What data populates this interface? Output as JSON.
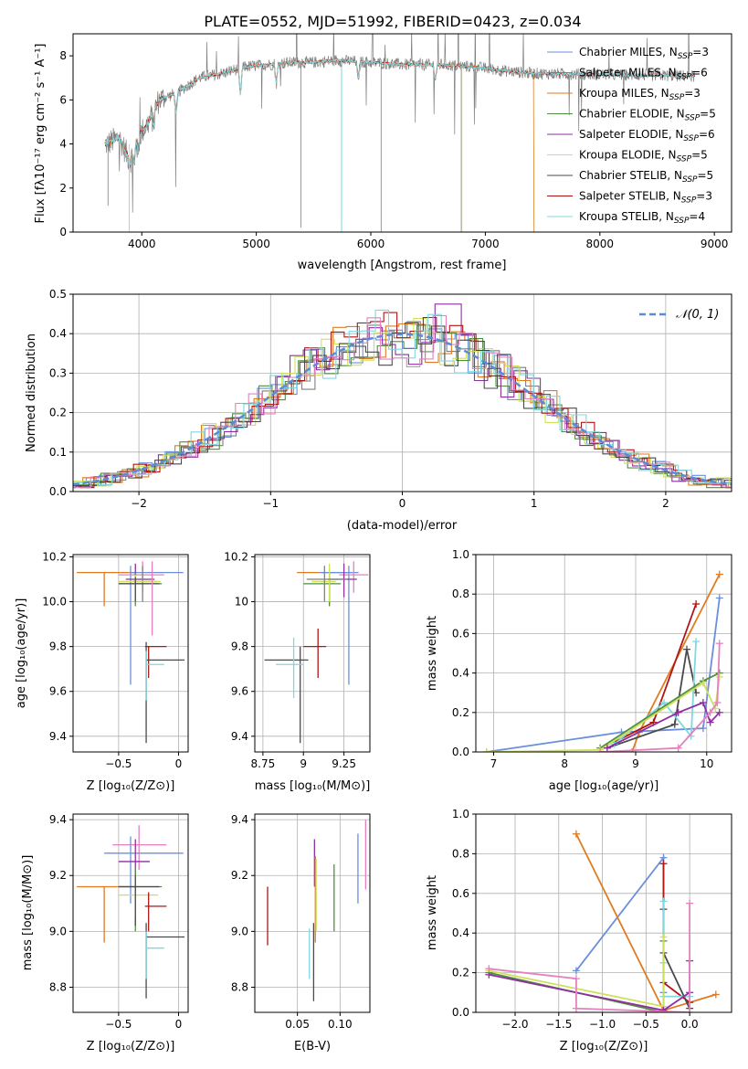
{
  "figure_title": "PLATE=0552, MJD=51992, FIBERID=0423, z=0.034",
  "colors": {
    "Chabrier MILES": "#6a8fdc",
    "Salpeter MILES": "#7f7f7f",
    "Kroupa MILES": "#e07b22",
    "Chabrier ELODIE": "#4f8f3f",
    "Salpeter ELODIE": "#8e2fa0",
    "Kroupa ELODIE": "#cfe05a",
    "Chabrier STELIB": "#4a4a4a",
    "Salpeter STELIB": "#b01515",
    "Kroupa STELIB": "#7fd8e0",
    "Extra": "#e680c0"
  },
  "chart_data": [
    {
      "id": "spectrum",
      "type": "line",
      "xlabel": "wavelength [Angstrom, rest frame]",
      "ylabel": "Flux [fλ10⁻¹⁷ erg cm⁻² s⁻¹ A⁻¹]",
      "xlim": [
        3400,
        9150
      ],
      "ylim": [
        0,
        9
      ],
      "xticks": [
        4000,
        5000,
        6000,
        7000,
        8000,
        9000
      ],
      "yticks": [
        0,
        2,
        4,
        6,
        8
      ],
      "grid": false,
      "legend_loc": "upper-right",
      "legend": [
        {
          "label": "Chabrier MILES, N",
          "sub": "SSP",
          "n": "=3",
          "color_key": "Chabrier MILES"
        },
        {
          "label": "Salpeter MILES, N",
          "sub": "SSP",
          "n": "=6",
          "color_key": "Salpeter MILES"
        },
        {
          "label": "Kroupa MILES, N",
          "sub": "SSP",
          "n": "=3",
          "color_key": "Kroupa MILES"
        },
        {
          "label": "Chabrier ELODIE, N",
          "sub": "SSP",
          "n": "=5",
          "color_key": "Chabrier ELODIE"
        },
        {
          "label": "Salpeter ELODIE, N",
          "sub": "SSP",
          "n": "=6",
          "color_key": "Salpeter ELODIE"
        },
        {
          "label": "Kroupa ELODIE, N",
          "sub": "SSP",
          "n": "=5",
          "color_key": "Kroupa ELODIE"
        },
        {
          "label": "Chabrier STELIB, N",
          "sub": "SSP",
          "n": "=5",
          "color_key": "Chabrier STELIB"
        },
        {
          "label": "Salpeter STELIB, N",
          "sub": "SSP",
          "n": "=3",
          "color_key": "Salpeter STELIB"
        },
        {
          "label": "Kroupa STELIB, N",
          "sub": "SSP",
          "n": "=4",
          "color_key": "Kroupa STELIB"
        }
      ],
      "continuum": [
        [
          3700,
          4.0
        ],
        [
          3800,
          4.3
        ],
        [
          3900,
          3.2
        ],
        [
          3950,
          4.2
        ],
        [
          4050,
          4.9
        ],
        [
          4150,
          6.0
        ],
        [
          4300,
          6.3
        ],
        [
          4500,
          7.0
        ],
        [
          4700,
          7.2
        ],
        [
          4900,
          7.5
        ],
        [
          5100,
          7.6
        ],
        [
          5300,
          7.7
        ],
        [
          5500,
          7.7
        ],
        [
          5700,
          7.8
        ],
        [
          6000,
          7.7
        ],
        [
          6300,
          7.6
        ],
        [
          6600,
          7.6
        ],
        [
          6900,
          7.5
        ],
        [
          7200,
          7.3
        ],
        [
          7420,
          7.2
        ]
      ],
      "features": [
        [
          3933,
          3.0
        ],
        [
          3968,
          3.5
        ],
        [
          4102,
          4.8
        ],
        [
          4300,
          5.4
        ],
        [
          4861,
          6.2
        ],
        [
          5175,
          6.7
        ],
        [
          5890,
          6.9
        ],
        [
          6563,
          6.9
        ]
      ],
      "series": [
        {
          "name": "Salpeter MILES",
          "x_end": 8830,
          "noise": 0.55
        },
        {
          "name": "Kroupa MILES",
          "x_end": 7420
        },
        {
          "name": "Salpeter STELIB",
          "x_end": 8830
        },
        {
          "name": "Kroupa STELIB",
          "x_end": 8830
        }
      ]
    },
    {
      "id": "residuals",
      "type": "histogram",
      "xlabel": "(data-model)/error",
      "ylabel": "Normed distribution",
      "xlim": [
        -2.5,
        2.5
      ],
      "ylim": [
        0,
        0.5
      ],
      "xticks": [
        -2,
        -1,
        0,
        1,
        2
      ],
      "yticks": [
        0.0,
        0.1,
        0.2,
        0.3,
        0.4,
        0.5
      ],
      "grid": true,
      "bin_width": 0.1,
      "legend": {
        "label": "𝒩(0, 1)",
        "loc": "upper-right"
      },
      "gaussian": {
        "mu": 0,
        "sigma": 1
      },
      "series_colors": [
        "Chabrier MILES",
        "Salpeter MILES",
        "Kroupa MILES",
        "Chabrier ELODIE",
        "Salpeter ELODIE",
        "Kroupa ELODIE",
        "Chabrier STELIB",
        "Salpeter STELIB",
        "Kroupa STELIB",
        "Extra"
      ]
    },
    {
      "id": "age-vs-z",
      "type": "errorbar",
      "xlabel": "Z [log₁₀(Z/Z⊙)]",
      "ylabel": "age  [log₁₀(age/yr)]",
      "xlim": [
        -0.88,
        0.08
      ],
      "ylim": [
        9.33,
        10.21
      ],
      "xticks": [
        -0.5,
        0.0
      ],
      "ytick_labels": [
        "9.4",
        "9.6",
        "9.8",
        "10.0",
        "10.2"
      ],
      "yticks": [
        9.4,
        9.6,
        9.8,
        10.0,
        10.2
      ],
      "grid": true,
      "points": [
        {
          "c": "Kroupa MILES",
          "x": -0.62,
          "y": 10.13,
          "xl": -0.85,
          "xh": -0.36,
          "yl": 9.98,
          "yh": 10.13
        },
        {
          "c": "Chabrier MILES",
          "x": -0.4,
          "y": 10.13,
          "xl": -0.4,
          "xh": 0.04,
          "yl": 9.63,
          "yh": 10.16
        },
        {
          "c": "Extra",
          "x": -0.3,
          "y": 10.12,
          "xl": -0.5,
          "xh": -0.12,
          "yl": 10.04,
          "yh": 10.18
        },
        {
          "c": "Salpeter ELODIE",
          "x": -0.36,
          "y": 10.1,
          "xl": -0.44,
          "xh": -0.2,
          "yl": 10.02,
          "yh": 10.17
        },
        {
          "c": "Salpeter MILES",
          "x": -0.3,
          "y": 10.09,
          "xl": -0.38,
          "xh": -0.18,
          "yl": 10.0,
          "yh": 10.16
        },
        {
          "c": "Chabrier ELODIE",
          "x": -0.36,
          "y": 10.08,
          "xl": -0.5,
          "xh": -0.14,
          "yl": 9.98,
          "yh": 10.13
        },
        {
          "c": "Kroupa ELODIE",
          "x": -0.36,
          "y": 10.09,
          "xl": -0.5,
          "xh": -0.15,
          "yl": 10.0,
          "yh": 10.12
        },
        {
          "c": "Chabrier STELIB",
          "x": -0.36,
          "y": 10.08,
          "xl": -0.5,
          "xh": -0.16,
          "yl": 10.0,
          "yh": 10.11
        },
        {
          "c": "Extra",
          "x": -0.22,
          "y": 10.05,
          "xl": -0.22,
          "xh": -0.22,
          "yl": 9.85,
          "yh": 10.18
        },
        {
          "c": "Salpeter STELIB",
          "x": -0.25,
          "y": 9.8,
          "xl": -0.28,
          "xh": -0.1,
          "yl": 9.66,
          "yh": 9.8
        },
        {
          "c": "Chabrier STELIB",
          "x": -0.27,
          "y": 9.74,
          "xl": -0.27,
          "xh": 0.05,
          "yl": 9.37,
          "yh": 9.82
        },
        {
          "c": "Kroupa STELIB",
          "x": -0.27,
          "y": 9.72,
          "xl": -0.27,
          "xh": -0.12,
          "yl": 9.56,
          "yh": 9.78
        }
      ]
    },
    {
      "id": "age-vs-mass",
      "type": "errorbar",
      "xlabel": "mass [log₁₀(M/M⊙)]",
      "ylabel": "",
      "xlim": [
        8.7,
        9.41
      ],
      "ylim": [
        9.33,
        10.21
      ],
      "xticks": [
        8.75,
        9.0,
        9.25
      ],
      "yticks": [
        9.4,
        9.6,
        9.8,
        10.0,
        10.2
      ],
      "grid": true,
      "points": [
        {
          "c": "Kroupa MILES",
          "x": 9.16,
          "y": 10.13,
          "xl": 8.96,
          "xh": 9.28,
          "yl": 9.98,
          "yh": 10.13
        },
        {
          "c": "Chabrier MILES",
          "x": 9.28,
          "y": 10.13,
          "xl": 9.1,
          "xh": 9.34,
          "yl": 9.63,
          "yh": 10.16
        },
        {
          "c": "Extra",
          "x": 9.31,
          "y": 10.12,
          "xl": 9.22,
          "xh": 9.4,
          "yl": 10.04,
          "yh": 10.18
        },
        {
          "c": "Salpeter ELODIE",
          "x": 9.25,
          "y": 10.1,
          "xl": 9.15,
          "xh": 9.33,
          "yl": 10.02,
          "yh": 10.17
        },
        {
          "c": "Chabrier ELODIE",
          "x": 9.16,
          "y": 10.08,
          "xl": 9.0,
          "xh": 9.23,
          "yl": 9.98,
          "yh": 10.13
        },
        {
          "c": "Kroupa ELODIE",
          "x": 9.16,
          "y": 10.09,
          "xl": 9.05,
          "xh": 9.2,
          "yl": 10.0,
          "yh": 10.17
        },
        {
          "c": "Salpeter MILES",
          "x": 9.13,
          "y": 10.1,
          "xl": 9.02,
          "xh": 9.27,
          "yl": 10.0,
          "yh": 10.16
        },
        {
          "c": "Salpeter STELIB",
          "x": 9.09,
          "y": 9.8,
          "xl": 9.0,
          "xh": 9.14,
          "yl": 9.66,
          "yh": 9.88
        },
        {
          "c": "Chabrier STELIB",
          "x": 8.98,
          "y": 9.74,
          "xl": 8.76,
          "xh": 9.03,
          "yl": 9.37,
          "yh": 9.8
        },
        {
          "c": "Kroupa STELIB",
          "x": 8.94,
          "y": 9.72,
          "xl": 8.83,
          "xh": 9.0,
          "yl": 9.57,
          "yh": 9.84
        }
      ]
    },
    {
      "id": "mass-weight-vs-age",
      "type": "line",
      "xlabel": "age  [log₁₀(age/yr)]",
      "ylabel": "mass weight",
      "xlim": [
        6.75,
        10.35
      ],
      "ylim": [
        0,
        1.0
      ],
      "xticks": [
        7,
        8,
        9,
        10
      ],
      "yticks": [
        0.0,
        0.2,
        0.4,
        0.6,
        0.8,
        1.0
      ],
      "grid": true,
      "series": [
        {
          "c": "Chabrier MILES",
          "x": [
            6.9,
            8.8,
            9.95,
            10.18
          ],
          "y": [
            0.0,
            0.1,
            0.12,
            0.78
          ]
        },
        {
          "c": "Kroupa MILES",
          "x": [
            8.95,
            9.05,
            10.18
          ],
          "y": [
            0.0,
            0.1,
            0.9
          ]
        },
        {
          "c": "Salpeter STELIB",
          "x": [
            8.7,
            9.25,
            9.85
          ],
          "y": [
            0.05,
            0.15,
            0.75
          ]
        },
        {
          "c": "Chabrier STELIB",
          "x": [
            8.6,
            9.55,
            9.72,
            9.85
          ],
          "y": [
            0.02,
            0.14,
            0.52,
            0.3
          ]
        },
        {
          "c": "Kroupa STELIB",
          "x": [
            8.7,
            9.4,
            9.78,
            9.85
          ],
          "y": [
            0.04,
            0.25,
            0.08,
            0.56
          ]
        },
        {
          "c": "Chabrier ELODIE",
          "x": [
            8.5,
            9.95,
            10.18
          ],
          "y": [
            0.02,
            0.36,
            0.4
          ]
        },
        {
          "c": "Kroupa ELODIE",
          "x": [
            6.9,
            8.5,
            9.95,
            10.12,
            10.18
          ],
          "y": [
            0.0,
            0.01,
            0.35,
            0.22,
            0.38
          ]
        },
        {
          "c": "Salpeter ELODIE",
          "x": [
            8.6,
            9.6,
            9.95,
            10.05,
            10.18
          ],
          "y": [
            0.02,
            0.2,
            0.25,
            0.15,
            0.2
          ]
        },
        {
          "c": "Extra",
          "x": [
            8.5,
            9.6,
            10.05,
            10.15,
            10.18
          ],
          "y": [
            0.0,
            0.02,
            0.2,
            0.25,
            0.55
          ]
        }
      ]
    },
    {
      "id": "mass-vs-z",
      "type": "errorbar",
      "xlabel": "Z [log₁₀(Z/Z⊙)]",
      "ylabel": "mass [log₁₀(M/M⊙)]",
      "xlim": [
        -0.88,
        0.08
      ],
      "ylim": [
        8.71,
        9.42
      ],
      "xticks": [
        -0.5,
        0.0
      ],
      "yticks": [
        8.8,
        9.0,
        9.2,
        9.4
      ],
      "grid": true,
      "points": [
        {
          "c": "Extra",
          "x": -0.33,
          "y": 9.31,
          "xl": -0.55,
          "xh": -0.1,
          "yl": 9.22,
          "yh": 9.38
        },
        {
          "c": "Chabrier MILES",
          "x": -0.4,
          "y": 9.28,
          "xl": -0.62,
          "xh": 0.04,
          "yl": 9.1,
          "yh": 9.34
        },
        {
          "c": "Salpeter ELODIE",
          "x": -0.36,
          "y": 9.25,
          "xl": -0.5,
          "xh": -0.24,
          "yl": 9.15,
          "yh": 9.33
        },
        {
          "c": "Kroupa MILES",
          "x": -0.62,
          "y": 9.16,
          "xl": -0.85,
          "xh": -0.36,
          "yl": 8.96,
          "yh": 9.16
        },
        {
          "c": "Chabrier ELODIE",
          "x": -0.36,
          "y": 9.16,
          "xl": -0.5,
          "xh": -0.14,
          "yl": 9.0,
          "yh": 9.23
        },
        {
          "c": "Kroupa ELODIE",
          "x": -0.36,
          "y": 9.13,
          "xl": -0.5,
          "xh": -0.17,
          "yl": 9.05,
          "yh": 9.2
        },
        {
          "c": "Chabrier STELIB",
          "x": -0.36,
          "y": 9.16,
          "xl": -0.5,
          "xh": -0.16,
          "yl": 9.02,
          "yh": 9.2
        },
        {
          "c": "Salpeter STELIB",
          "x": -0.25,
          "y": 9.09,
          "xl": -0.28,
          "xh": -0.1,
          "yl": 9.0,
          "yh": 9.14
        },
        {
          "c": "Chabrier STELIB",
          "x": -0.27,
          "y": 8.98,
          "xl": -0.27,
          "xh": 0.05,
          "yl": 8.76,
          "yh": 9.03
        },
        {
          "c": "Kroupa STELIB",
          "x": -0.27,
          "y": 8.94,
          "xl": -0.27,
          "xh": -0.12,
          "yl": 8.83,
          "yh": 9.0
        }
      ]
    },
    {
      "id": "mass-vs-ebv",
      "type": "errorbar",
      "xlabel": "E(B-V)",
      "ylabel": "",
      "xlim": [
        0.0,
        0.135
      ],
      "ylim": [
        8.71,
        9.42
      ],
      "xticks": [
        0.05,
        0.1
      ],
      "xtick_labels": [
        "0.05",
        "0.10"
      ],
      "yticks": [
        8.8,
        9.0,
        9.2,
        9.4
      ],
      "grid": true,
      "points": [
        {
          "c": "Salpeter STELIB",
          "x": 0.015,
          "y": 9.05,
          "xl": 0.015,
          "xh": 0.015,
          "yl": 8.95,
          "yh": 9.16
        },
        {
          "c": "Kroupa STELIB",
          "x": 0.064,
          "y": 8.92,
          "xl": 0.064,
          "xh": 0.064,
          "yl": 8.83,
          "yh": 9.01
        },
        {
          "c": "Chabrier STELIB",
          "x": 0.069,
          "y": 8.85,
          "xl": 0.069,
          "xh": 0.069,
          "yl": 8.75,
          "yh": 9.03
        },
        {
          "c": "Salpeter ELODIE",
          "x": 0.07,
          "y": 9.25,
          "xl": 0.07,
          "xh": 0.07,
          "yl": 9.16,
          "yh": 9.33
        },
        {
          "c": "Kroupa MILES",
          "x": 0.071,
          "y": 9.1,
          "xl": 0.071,
          "xh": 0.071,
          "yl": 8.96,
          "yh": 9.27
        },
        {
          "c": "Kroupa ELODIE",
          "x": 0.072,
          "y": 9.13,
          "xl": 0.072,
          "xh": 0.072,
          "yl": 9.0,
          "yh": 9.26
        },
        {
          "c": "Chabrier ELODIE",
          "x": 0.093,
          "y": 9.15,
          "xl": 0.093,
          "xh": 0.093,
          "yl": 9.0,
          "yh": 9.24
        },
        {
          "c": "Chabrier MILES",
          "x": 0.121,
          "y": 9.22,
          "xl": 0.121,
          "xh": 0.121,
          "yl": 9.1,
          "yh": 9.35
        },
        {
          "c": "Extra",
          "x": 0.13,
          "y": 9.28,
          "xl": 0.13,
          "xh": 0.13,
          "yl": 9.15,
          "yh": 9.4
        }
      ]
    },
    {
      "id": "mass-weight-vs-z",
      "type": "line",
      "xlabel": "Z [log₁₀(Z/Z⊙)]",
      "ylabel": "mass weight",
      "xlim": [
        -2.45,
        0.48
      ],
      "ylim": [
        0,
        1.0
      ],
      "xticks": [
        -2.0,
        -1.5,
        -1.0,
        -0.5,
        0.0
      ],
      "xtick_labels": [
        "−2.0",
        "−1.5",
        "−1.0",
        "−0.5",
        "0.0"
      ],
      "yticks": [
        0.0,
        0.2,
        0.4,
        0.6,
        0.8,
        1.0
      ],
      "grid": true,
      "series": [
        {
          "c": "Chabrier MILES",
          "x": [
            -1.3,
            -0.3,
            -0.3
          ],
          "y": [
            0.21,
            0.78,
            0.1
          ]
        },
        {
          "c": "Kroupa MILES",
          "x": [
            -1.3,
            -0.3,
            0.3
          ],
          "y": [
            0.9,
            0.01,
            0.09
          ]
        },
        {
          "c": "Salpeter STELIB",
          "x": [
            -0.3,
            -0.3,
            0.0
          ],
          "y": [
            0.75,
            0.15,
            0.05
          ]
        },
        {
          "c": "Chabrier STELIB",
          "x": [
            -0.3,
            -0.3,
            0.0
          ],
          "y": [
            0.52,
            0.3,
            0.02
          ]
        },
        {
          "c": "Kroupa STELIB",
          "x": [
            -0.3,
            -0.3,
            -0.3,
            0.0
          ],
          "y": [
            0.56,
            0.25,
            0.08,
            0.08
          ]
        },
        {
          "c": "Chabrier ELODIE",
          "x": [
            -2.3,
            -0.3,
            -0.3
          ],
          "y": [
            0.2,
            0.0,
            0.36
          ]
        },
        {
          "c": "Kroupa ELODIE",
          "x": [
            -2.3,
            -0.3,
            -0.3
          ],
          "y": [
            0.21,
            0.03,
            0.38
          ]
        },
        {
          "c": "Salpeter ELODIE",
          "x": [
            -2.3,
            -0.3,
            0.0,
            0.0
          ],
          "y": [
            0.19,
            0.01,
            0.1,
            0.26
          ]
        },
        {
          "c": "Extra",
          "x": [
            -2.3,
            -1.3,
            -1.3,
            0.0,
            0.0
          ],
          "y": [
            0.22,
            0.17,
            0.02,
            0.0,
            0.55
          ]
        }
      ]
    }
  ]
}
